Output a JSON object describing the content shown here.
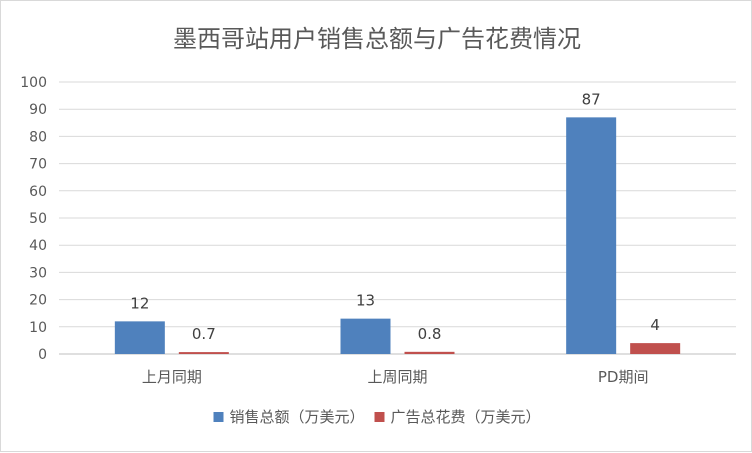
{
  "chart_data": {
    "type": "bar",
    "title": "墨西哥站用户销售总额与广告花费情况",
    "categories": [
      "上月同期",
      "上周同期",
      "PD期间"
    ],
    "series": [
      {
        "name": "销售总额（万美元）",
        "values": [
          12,
          13,
          87
        ],
        "labels": [
          "12",
          "13",
          "87"
        ],
        "color": "#4f81bd"
      },
      {
        "name": "广告总花费（万美元）",
        "values": [
          0.7,
          0.8,
          4
        ],
        "labels": [
          "0.7",
          "0.8",
          "4"
        ],
        "color": "#c0504d"
      }
    ],
    "ylim": [
      0,
      100
    ],
    "yticks": [
      "0",
      "10",
      "20",
      "30",
      "40",
      "50",
      "60",
      "70",
      "80",
      "90",
      "100"
    ],
    "grid": true,
    "legend": "bottom"
  }
}
